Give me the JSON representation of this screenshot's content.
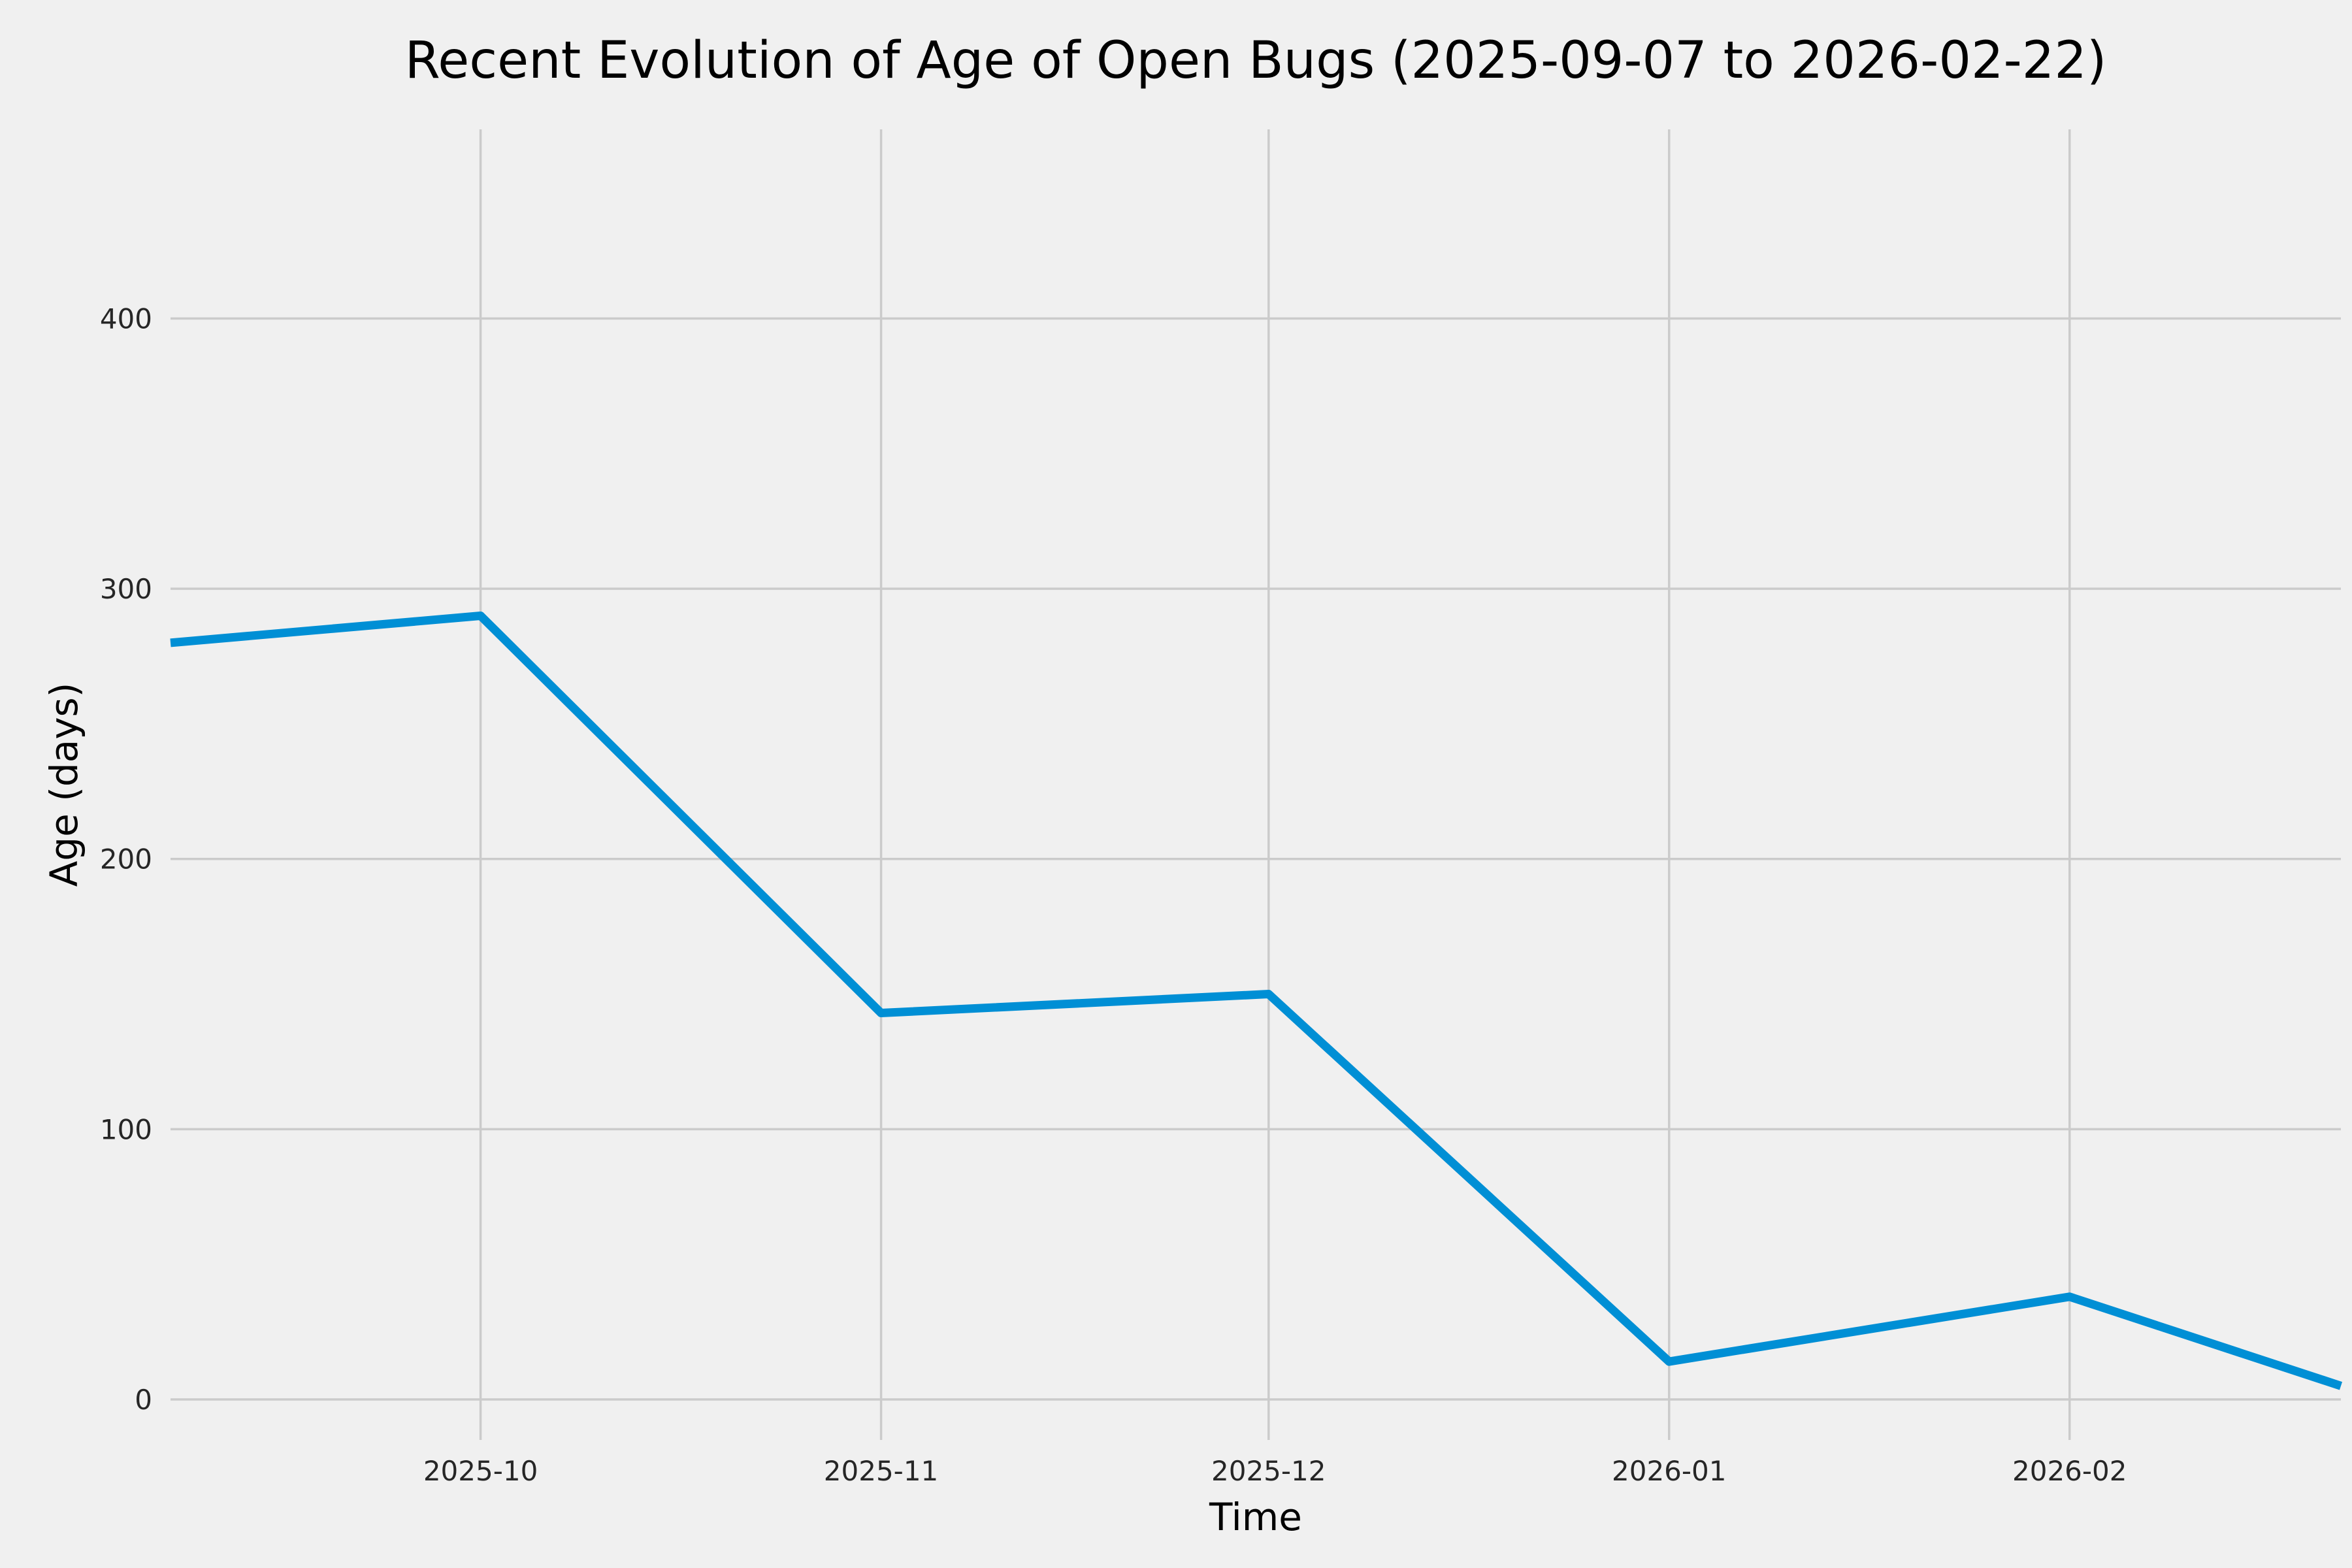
{
  "title": "Recent Evolution of Age of Open Bugs (2025-09-07 to 2026-02-22)",
  "colors": {
    "background": "#f0f0f0",
    "grid": "#cbcbcb",
    "line": "#008fd5",
    "title_text": "#000000",
    "tick_text": "#262626"
  },
  "chart_data": {
    "type": "line",
    "title": "Recent Evolution of Age of Open Bugs (2025-09-07 to 2026-02-22)",
    "xlabel": "Time",
    "ylabel": "Age (days)",
    "x": [
      "2025-09-07",
      "2025-10-01",
      "2025-11-01",
      "2025-12-01",
      "2026-01-01",
      "2026-02-01",
      "2026-02-22"
    ],
    "values": [
      280,
      290,
      143,
      150,
      14,
      38,
      5
    ],
    "x_ticks": [
      {
        "date": "2025-10-01",
        "label": "2025-10"
      },
      {
        "date": "2025-11-01",
        "label": "2025-11"
      },
      {
        "date": "2025-12-01",
        "label": "2025-12"
      },
      {
        "date": "2026-01-01",
        "label": "2026-01"
      },
      {
        "date": "2026-02-01",
        "label": "2026-02"
      }
    ],
    "y_ticks": [
      0,
      100,
      200,
      300,
      400
    ],
    "xlim": [
      "2025-09-07",
      "2026-02-22"
    ],
    "ylim": [
      -15,
      470
    ],
    "grid": true,
    "legend": "none"
  }
}
